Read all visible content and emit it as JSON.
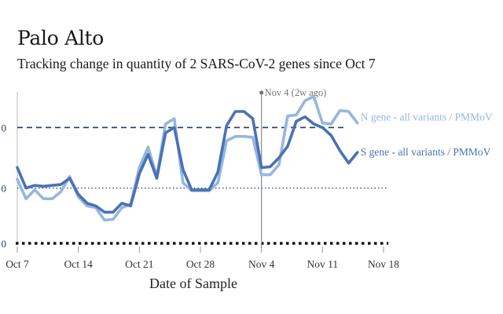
{
  "title": "Palo Alto",
  "subtitle": "Tracking change in quantity of 2 SARS-CoV-2 genes since Oct 7",
  "chart_data": {
    "type": "line",
    "title": "Palo Alto",
    "subtitle": "Tracking change in quantity of 2 SARS-CoV-2 genes since Oct 7",
    "xlabel": "Date of Sample",
    "ylabel": "",
    "x_ticks": [
      "Oct 7",
      "Oct 14",
      "Oct 21",
      "Oct 28",
      "Nov 4",
      "Nov 11",
      "Nov 18"
    ],
    "x_tick_days": [
      0,
      7,
      14,
      21,
      28,
      35,
      42
    ],
    "y_tick_labels": [
      "0",
      "0",
      "0"
    ],
    "xlim_days": [
      0,
      42
    ],
    "ylim": [
      0,
      1.7
    ],
    "reference_lines": [
      {
        "label": "",
        "y": 1.3,
        "style": "dashed",
        "color": "#1f3a6e"
      },
      {
        "label": "",
        "y": 0.62,
        "style": "dotted",
        "color": "#1f3a6e"
      },
      {
        "label": "",
        "y": 0,
        "style": "dotted-thick",
        "color": "#111111"
      }
    ],
    "annotation": {
      "label": "Nov 4 (2w ago)",
      "x_day": 28,
      "color": "#888888"
    },
    "series": [
      {
        "name": "N gene - all variants / PMMoV",
        "color": "#95b6e0",
        "x": [
          0,
          1,
          2,
          3,
          4,
          5,
          6,
          7,
          8,
          9,
          10,
          11,
          12,
          13,
          14,
          15,
          16,
          17,
          18,
          19,
          20,
          21,
          22,
          23,
          24,
          25,
          26,
          27,
          28,
          29,
          30,
          31,
          32,
          33,
          34,
          35,
          36,
          37,
          38,
          39
        ],
        "y": [
          0.72,
          0.5,
          0.6,
          0.5,
          0.5,
          0.58,
          0.75,
          0.52,
          0.42,
          0.4,
          0.26,
          0.27,
          0.4,
          0.44,
          0.85,
          1.08,
          0.75,
          1.34,
          1.4,
          0.68,
          0.59,
          0.59,
          0.59,
          0.68,
          1.15,
          1.2,
          1.2,
          1.19,
          0.77,
          0.77,
          0.88,
          1.43,
          1.44,
          1.6,
          1.65,
          1.35,
          1.34,
          1.49,
          1.48,
          1.35
        ]
      },
      {
        "name": "S gene - all variants / PMMoV",
        "color": "#4a72b4",
        "x": [
          0,
          1,
          2,
          3,
          4,
          5,
          6,
          7,
          8,
          9,
          10,
          11,
          12,
          13,
          14,
          15,
          16,
          17,
          18,
          19,
          20,
          21,
          22,
          23,
          24,
          25,
          26,
          27,
          28,
          29,
          30,
          31,
          32,
          33,
          34,
          35,
          36,
          37,
          38,
          39
        ],
        "y": [
          0.85,
          0.62,
          0.65,
          0.64,
          0.65,
          0.66,
          0.73,
          0.55,
          0.45,
          0.42,
          0.35,
          0.35,
          0.45,
          0.42,
          0.78,
          1.0,
          0.73,
          1.24,
          1.3,
          0.83,
          0.6,
          0.6,
          0.6,
          0.8,
          1.32,
          1.48,
          1.48,
          1.4,
          0.85,
          0.86,
          0.96,
          1.09,
          1.37,
          1.42,
          1.34,
          1.3,
          1.21,
          1.04,
          0.9,
          1.02
        ]
      }
    ]
  }
}
